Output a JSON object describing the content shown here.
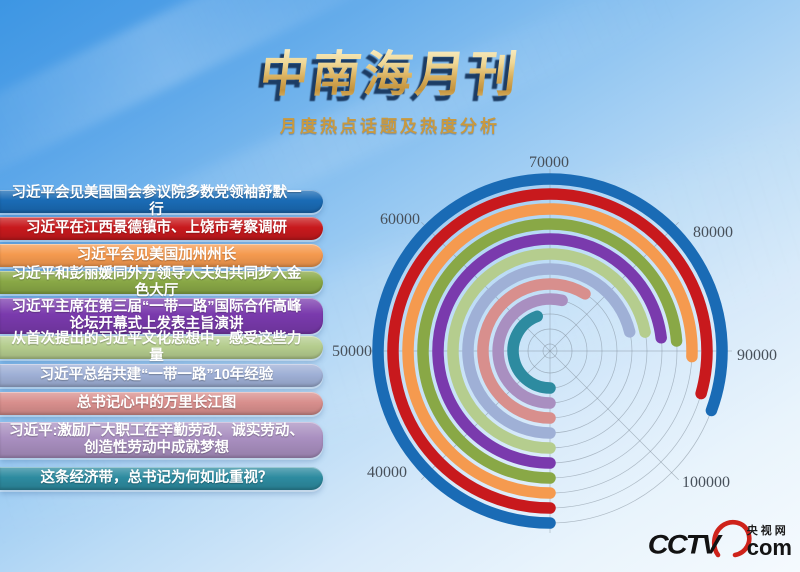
{
  "header": {
    "title": "中南海月刊",
    "subtitle": "月度热点话题及热度分析"
  },
  "topics": [
    {
      "label": "习近平会见美国国会参议院多数党领袖舒默一行",
      "color": "#1a6bb5",
      "two_line": false
    },
    {
      "label": "习近平在江西景德镇市、上饶市考察调研",
      "color": "#c8191d",
      "two_line": false
    },
    {
      "label": "习近平会见美国加州州长",
      "color": "#f59a4f",
      "two_line": false
    },
    {
      "label": "习近平和彭丽媛同外方领导人夫妇共同步入金色大厅",
      "color": "#89a846",
      "two_line": false
    },
    {
      "label": "习近平主席在第三届“一带一路”国际合作高峰论坛开幕式上发表主旨演讲",
      "color": "#7a3aad",
      "two_line": true
    },
    {
      "label": "从首次提出的习近平文化思想中，感受这些力量",
      "color": "#b5cd8e",
      "two_line": false
    },
    {
      "label": "习近平总结共建“一带一路”10年经验",
      "color": "#9fb0d6",
      "two_line": false
    },
    {
      "label": "总书记心中的万里长江图",
      "color": "#d88f8d",
      "two_line": false
    },
    {
      "label": "习近平:激励广大职工在辛勤劳动、诚实劳动、创造性劳动中成就梦想",
      "color": "#a98fc0",
      "two_line": true
    },
    {
      "label": "这条经济带，总书记为何如此重视？",
      "color": "#2d8ba0",
      "two_line": false
    }
  ],
  "chart_data": {
    "type": "bar",
    "subtype": "radial-polar-bars",
    "title": "月度热点话题及热度分析",
    "categories": [
      "习近平会见美国国会参议院多数党领袖舒默一行",
      "习近平在江西景德镇市、上饶市考察调研",
      "习近平会见美国加州州长",
      "习近平和彭丽媛同外方领导人夫妇共同步入金色大厅",
      "习近平主席在第三届“一带一路”国际合作高峰论坛开幕式上发表主旨演讲",
      "从首次提出的习近平文化思想中，感受这些力量",
      "习近平总结共建“一带一路”10年经验",
      "总书记心中的万里长江图",
      "习近平:激励广大职工在辛勤劳动、诚实劳动、创造性劳动中成就梦想",
      "这条经济带，总书记为何如此重视？"
    ],
    "values": [
      94500,
      93500,
      90500,
      89000,
      88500,
      87500,
      87000,
      77000,
      73000,
      65500
    ],
    "series_colors": [
      "#1a6bb5",
      "#c8191d",
      "#f59a4f",
      "#89a846",
      "#7a3aad",
      "#b5cd8e",
      "#9fb0d6",
      "#d88f8d",
      "#a98fc0",
      "#2d8ba0"
    ],
    "rings_order": "outer_to_inner",
    "angle_axis": {
      "min": 30000,
      "max": 110000,
      "tick_interval": 10000,
      "tick_labels": [
        "40000",
        "50000",
        "60000",
        "70000",
        "80000",
        "90000",
        "100000"
      ],
      "start_angle": "bottom",
      "direction": "clockwise"
    },
    "grid": true,
    "legend": "none"
  },
  "logo": {
    "brand": "CCTV",
    "site": "央视网",
    "domain": "com"
  }
}
